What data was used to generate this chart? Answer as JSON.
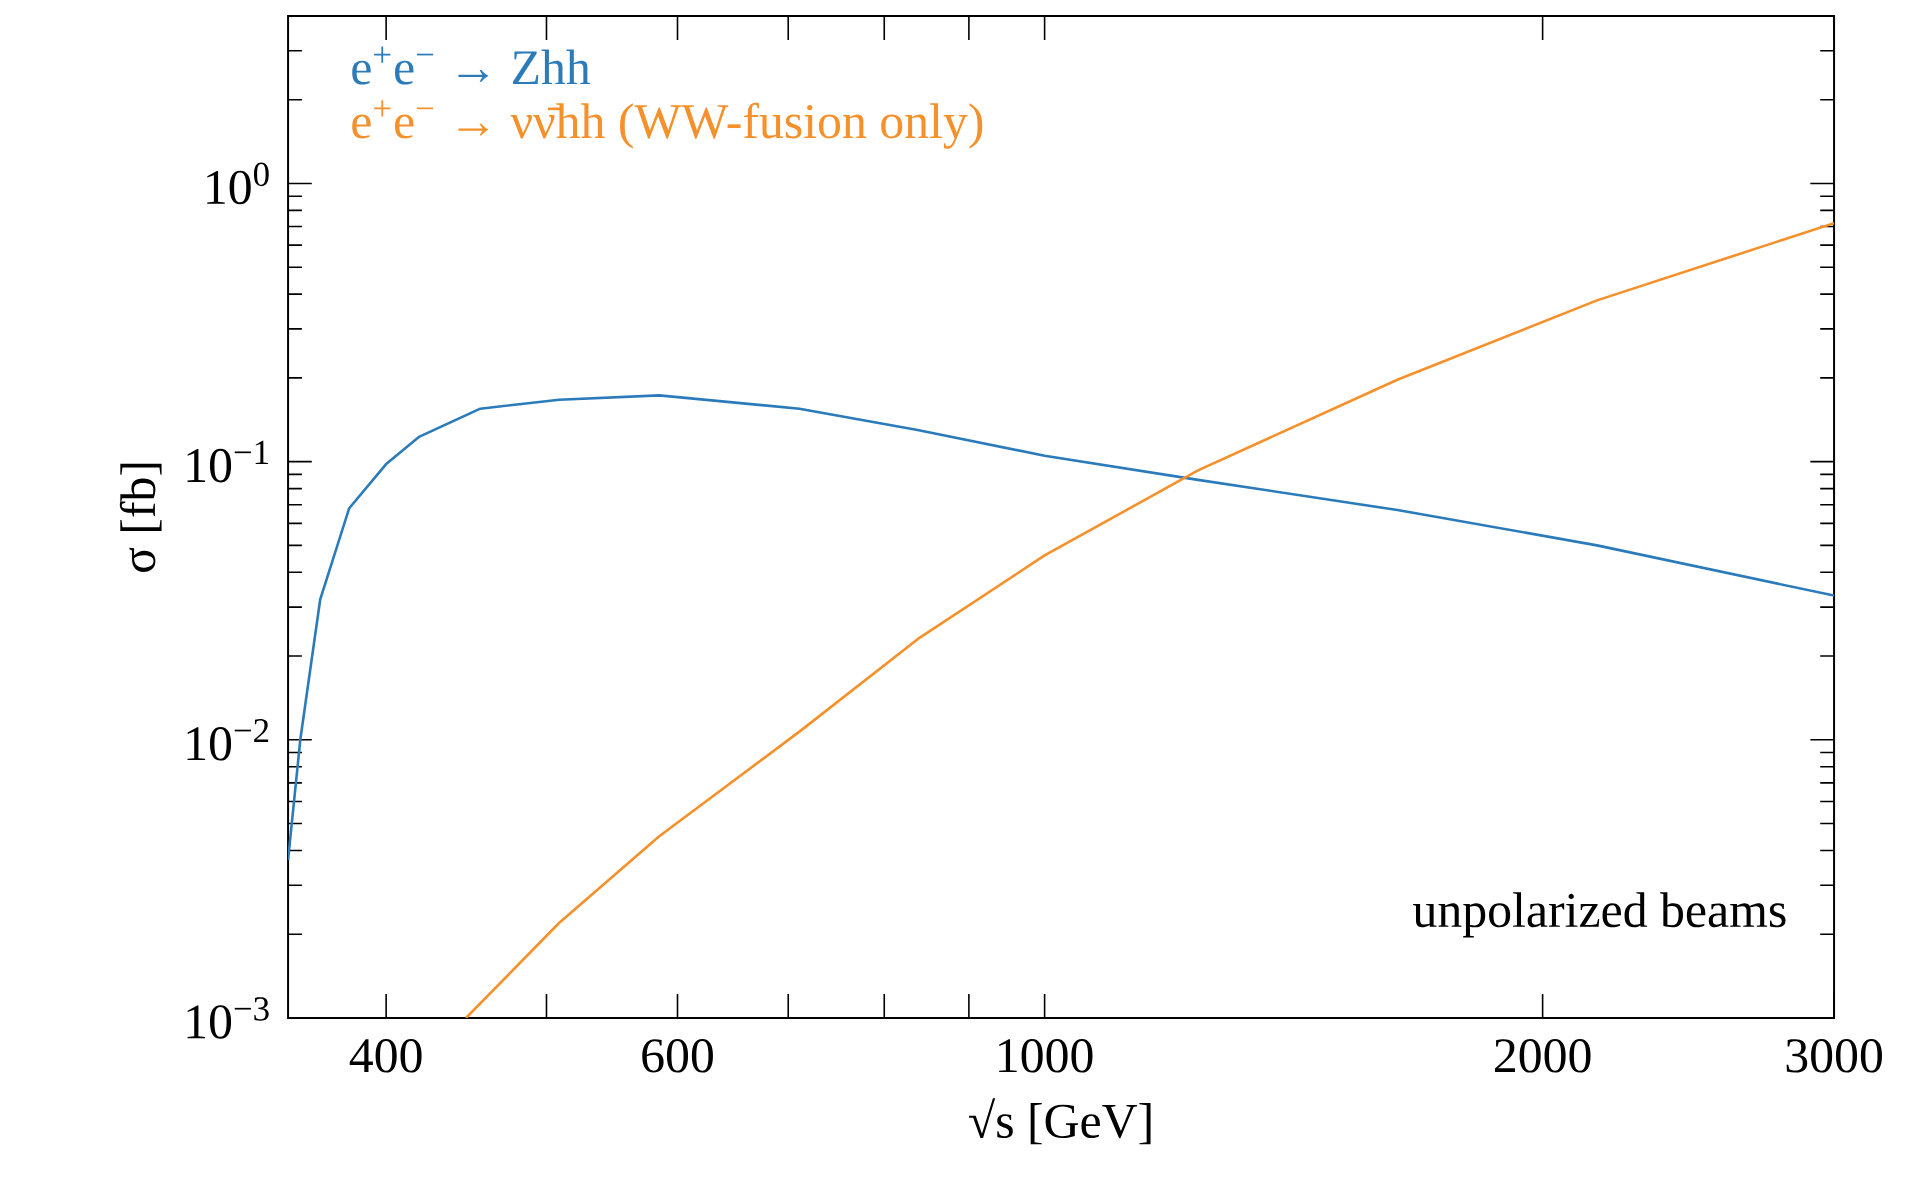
{
  "chart_data": {
    "type": "line",
    "xlabel": "√s [GeV]",
    "ylabel": "σ [fb]",
    "x": [
      349,
      355,
      365,
      380,
      400,
      419,
      456,
      509,
      585,
      711,
      838,
      1000,
      1238,
      1634,
      2157,
      3000
    ],
    "series": [
      {
        "name": "e$^{+}$e$^{−}$ → Zhh",
        "color": "#2b7bba",
        "values": [
          0.0037,
          0.01,
          0.032,
          0.068,
          0.098,
          0.123,
          0.155,
          0.167,
          0.173,
          0.155,
          0.13,
          0.105,
          0.086,
          0.067,
          0.05,
          0.033
        ]
      },
      {
        "name": "e$^{+}$e$^{−}$ → νν̄hh (WW-fusion only)",
        "color": "#f5902a",
        "x": [
          447,
          509,
          585,
          711,
          838,
          1000,
          1238,
          1634,
          2157,
          3000
        ],
        "values": [
          0.001,
          0.0022,
          0.0045,
          0.0107,
          0.023,
          0.046,
          0.093,
          0.197,
          0.38,
          0.72
        ]
      }
    ],
    "log": "xy",
    "xlim": [
      349,
      3000
    ],
    "ylim": [
      0.001,
      4
    ],
    "xticks": [
      400,
      {
        "value": 500,
        "label": null
      },
      600,
      {
        "value": 700,
        "label": null
      },
      {
        "value": 800,
        "label": null
      },
      {
        "value": 900,
        "label": null
      },
      1000,
      2000,
      3000
    ],
    "yticks": [
      {
        "value": 0.001,
        "label": "10$^{−3}$"
      },
      {
        "value": 0.01,
        "label": "10$^{−2}$"
      },
      {
        "value": 0.1,
        "label": "10$^{−1}$"
      },
      {
        "value": 1,
        "label": "10$^{0}$"
      }
    ],
    "legend": "top left",
    "grid": false,
    "annotations": [
      "unpolarized beams"
    ]
  }
}
